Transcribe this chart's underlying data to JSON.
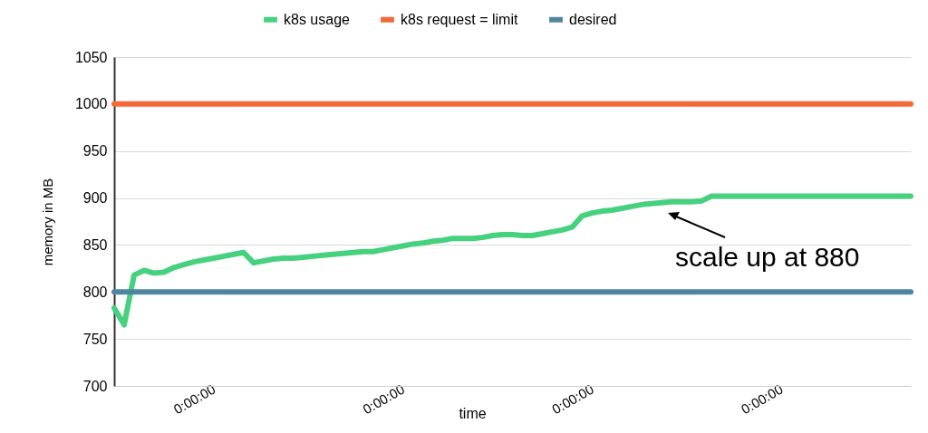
{
  "chart_data": {
    "type": "line",
    "xlabel": "time",
    "ylabel": "memory in MB",
    "categories": [
      null,
      null,
      null,
      null,
      null,
      null,
      null,
      null,
      null,
      null,
      "0:00:00",
      null,
      null,
      null,
      null,
      null,
      null,
      null,
      null,
      null,
      null,
      null,
      null,
      null,
      null,
      null,
      null,
      null,
      null,
      "0:00:00",
      null,
      null,
      null,
      null,
      null,
      null,
      null,
      null,
      null,
      null,
      null,
      null,
      null,
      null,
      null,
      null,
      null,
      null,
      "0:00:00",
      null,
      null,
      null,
      null,
      null,
      null,
      null,
      null,
      null,
      null,
      null,
      null,
      null,
      null,
      null,
      null,
      null,
      null,
      "0:00:00",
      null,
      null,
      null,
      null,
      null,
      null,
      null,
      null,
      null,
      null,
      null,
      null,
      null
    ],
    "series": [
      {
        "name": "k8s usage",
        "color": "#46d17f",
        "values": [
          783,
          765,
          818,
          823,
          820,
          821,
          826,
          829,
          832,
          834,
          836,
          838,
          840,
          842,
          831,
          833,
          835,
          836,
          836,
          837,
          838,
          839,
          840,
          841,
          842,
          843,
          843,
          845,
          847,
          849,
          851,
          852,
          854,
          855,
          857,
          857,
          857,
          858,
          860,
          861,
          861,
          860,
          860,
          862,
          864,
          866,
          869,
          881,
          884,
          886,
          887,
          889,
          891,
          893,
          894,
          895,
          896,
          896,
          896,
          897,
          902,
          902,
          902,
          902,
          902,
          902,
          902,
          902,
          902,
          902,
          902,
          902,
          902,
          902,
          902,
          902,
          902,
          902,
          902,
          902,
          902
        ]
      },
      {
        "name": "k8s request = limit",
        "color": "#f4683a",
        "values": [
          1000,
          1000,
          1000,
          1000,
          1000,
          1000,
          1000,
          1000,
          1000,
          1000,
          1000,
          1000,
          1000,
          1000,
          1000,
          1000,
          1000,
          1000,
          1000,
          1000,
          1000,
          1000,
          1000,
          1000,
          1000,
          1000,
          1000,
          1000,
          1000,
          1000,
          1000,
          1000,
          1000,
          1000,
          1000,
          1000,
          1000,
          1000,
          1000,
          1000,
          1000,
          1000,
          1000,
          1000,
          1000,
          1000,
          1000,
          1000,
          1000,
          1000,
          1000,
          1000,
          1000,
          1000,
          1000,
          1000,
          1000,
          1000,
          1000,
          1000,
          1000,
          1000,
          1000,
          1000,
          1000,
          1000,
          1000,
          1000,
          1000,
          1000,
          1000,
          1000,
          1000,
          1000,
          1000,
          1000,
          1000,
          1000,
          1000,
          1000,
          1000
        ]
      },
      {
        "name": "desired",
        "color": "#4e86a0",
        "values": [
          800,
          800,
          800,
          800,
          800,
          800,
          800,
          800,
          800,
          800,
          800,
          800,
          800,
          800,
          800,
          800,
          800,
          800,
          800,
          800,
          800,
          800,
          800,
          800,
          800,
          800,
          800,
          800,
          800,
          800,
          800,
          800,
          800,
          800,
          800,
          800,
          800,
          800,
          800,
          800,
          800,
          800,
          800,
          800,
          800,
          800,
          800,
          800,
          800,
          800,
          800,
          800,
          800,
          800,
          800,
          800,
          800,
          800,
          800,
          800,
          800,
          800,
          800,
          800,
          800,
          800,
          800,
          800,
          800,
          800,
          800,
          800,
          800,
          800,
          800,
          800,
          800,
          800,
          800,
          800,
          800
        ]
      }
    ],
    "ylim": [
      700,
      1050
    ],
    "yticks": [
      700,
      750,
      800,
      850,
      900,
      950,
      1000,
      1050
    ],
    "grid": "y",
    "legend": "top",
    "annotations": [
      "scale up at 880"
    ]
  }
}
